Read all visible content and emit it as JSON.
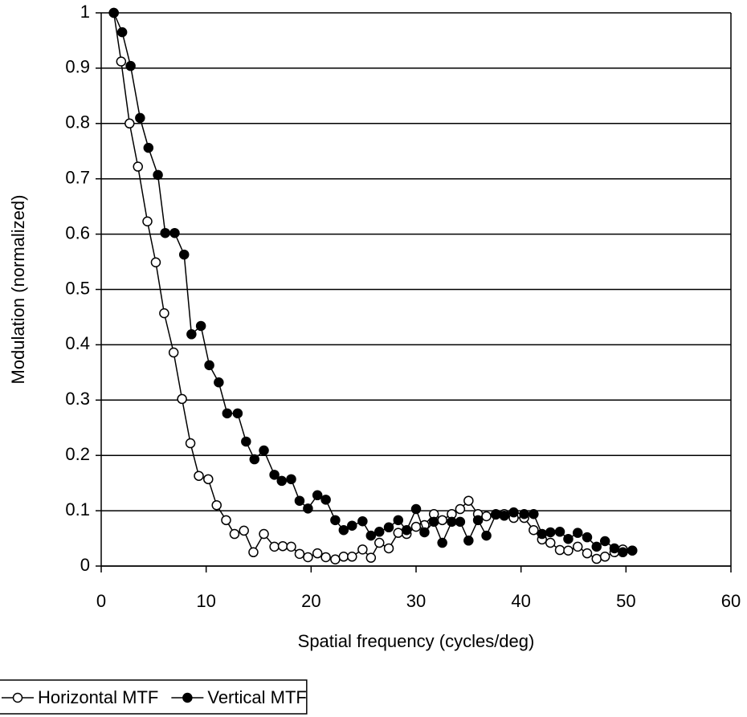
{
  "chart_data": {
    "type": "line",
    "xlabel": "Spatial frequency (cycles/deg)",
    "ylabel": "Modulation (normalized)",
    "xlim": [
      0,
      60
    ],
    "xticks": [
      0,
      10,
      20,
      30,
      40,
      50,
      60
    ],
    "ylim": [
      0,
      1
    ],
    "yticks": [
      0,
      0.1,
      0.2,
      0.3,
      0.4,
      0.5,
      0.6,
      0.7,
      0.8,
      0.9,
      1
    ],
    "grid": true,
    "legend": "bottom-left",
    "series": [
      {
        "name": "Horizontal MTF",
        "color": "#000000",
        "marker": "open",
        "x": [
          1.2,
          1.9,
          2.7,
          3.5,
          4.4,
          5.2,
          6.0,
          6.9,
          7.7,
          8.5,
          9.3,
          10.2,
          11.0,
          11.9,
          12.7,
          13.6,
          14.5,
          15.5,
          16.5,
          17.3,
          18.1,
          18.9,
          19.7,
          20.6,
          21.4,
          22.3,
          23.1,
          23.9,
          24.9,
          25.7,
          26.5,
          27.4,
          28.3,
          29.1,
          30.0,
          30.8,
          31.7,
          32.5,
          33.4,
          34.2,
          35.0,
          35.9,
          36.7,
          37.6,
          38.4,
          39.3,
          40.3,
          41.2,
          42.0,
          42.8,
          43.7,
          44.5,
          45.4,
          46.3,
          47.2,
          48.0,
          48.9,
          49.7,
          50.6
        ],
        "values": [
          1,
          0.912,
          0.8,
          0.722,
          0.623,
          0.549,
          0.457,
          0.386,
          0.302,
          0.222,
          0.163,
          0.157,
          0.11,
          0.083,
          0.058,
          0.064,
          0.025,
          0.058,
          0.035,
          0.036,
          0.035,
          0.022,
          0.016,
          0.023,
          0.016,
          0.012,
          0.017,
          0.017,
          0.03,
          0.015,
          0.042,
          0.032,
          0.06,
          0.058,
          0.071,
          0.074,
          0.094,
          0.083,
          0.094,
          0.103,
          0.118,
          0.094,
          0.09,
          0.094,
          0.094,
          0.087,
          0.087,
          0.065,
          0.048,
          0.042,
          0.029,
          0.028,
          0.035,
          0.023,
          0.013,
          0.017,
          0.025,
          0.03,
          0.028
        ]
      },
      {
        "name": "Vertical MTF",
        "color": "#000000",
        "marker": "filled",
        "x": [
          1.2,
          2.0,
          2.8,
          3.7,
          4.5,
          5.4,
          6.1,
          7.0,
          7.9,
          8.6,
          9.5,
          10.3,
          11.2,
          12.0,
          13.0,
          13.8,
          14.6,
          15.5,
          16.5,
          17.2,
          18.1,
          18.9,
          19.7,
          20.6,
          21.4,
          22.3,
          23.1,
          23.9,
          24.9,
          25.7,
          26.5,
          27.4,
          28.3,
          29.1,
          30.0,
          30.8,
          31.7,
          32.5,
          33.4,
          34.2,
          35.0,
          35.9,
          36.7,
          37.6,
          38.4,
          39.3,
          40.3,
          41.2,
          42.0,
          42.8,
          43.7,
          44.5,
          45.4,
          46.3,
          47.2,
          48.0,
          48.9,
          49.7,
          50.6
        ],
        "values": [
          1,
          0.965,
          0.904,
          0.81,
          0.756,
          0.707,
          0.602,
          0.602,
          0.563,
          0.419,
          0.434,
          0.363,
          0.332,
          0.276,
          0.276,
          0.225,
          0.193,
          0.209,
          0.165,
          0.154,
          0.157,
          0.118,
          0.104,
          0.128,
          0.12,
          0.083,
          0.065,
          0.073,
          0.081,
          0.055,
          0.062,
          0.07,
          0.083,
          0.065,
          0.103,
          0.061,
          0.08,
          0.042,
          0.08,
          0.08,
          0.046,
          0.083,
          0.055,
          0.093,
          0.091,
          0.097,
          0.094,
          0.094,
          0.058,
          0.061,
          0.062,
          0.049,
          0.06,
          0.052,
          0.035,
          0.045,
          0.032,
          0.025,
          0.028
        ]
      }
    ]
  }
}
